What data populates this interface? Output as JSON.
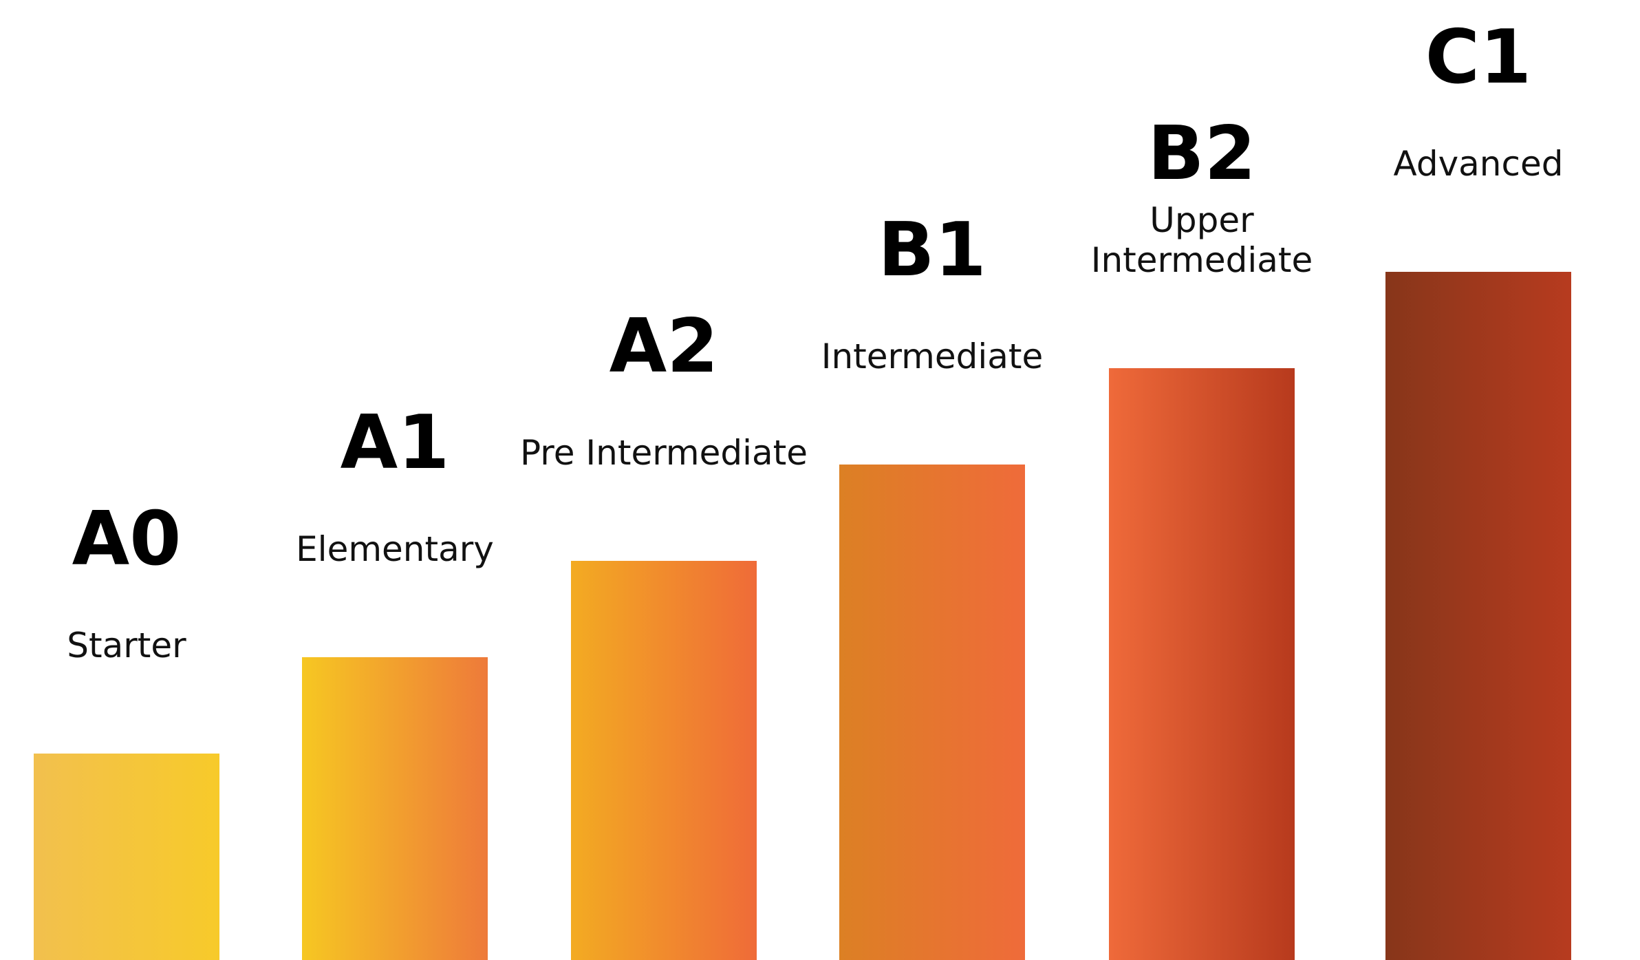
{
  "chart_data": {
    "type": "bar",
    "title": "",
    "xlabel": "",
    "ylabel": "",
    "grid": false,
    "legend": "none",
    "ylim": [
      0,
      6
    ],
    "categories": [
      "A0",
      "A1",
      "A2",
      "B1",
      "B2",
      "C1"
    ],
    "series": [
      {
        "values": [
          1,
          2,
          3,
          4,
          5,
          6
        ]
      }
    ],
    "bars": [
      {
        "code": "A0",
        "name_lines": [
          "Starter"
        ],
        "value": 1,
        "colors": [
          "#f2c04e",
          "#f7ca2a"
        ]
      },
      {
        "code": "A1",
        "name_lines": [
          "Elementary"
        ],
        "value": 2,
        "colors": [
          "#f6c722",
          "#ee7a3a"
        ]
      },
      {
        "code": "A2",
        "name_lines": [
          "Pre Intermediate"
        ],
        "value": 3,
        "colors": [
          "#f3ab22",
          "#ef6b38"
        ]
      },
      {
        "code": "B1",
        "name_lines": [
          "Intermediate"
        ],
        "value": 4,
        "colors": [
          "#dc8024",
          "#ef6b3a"
        ]
      },
      {
        "code": "B2",
        "name_lines": [
          "Upper",
          "Intermediate"
        ],
        "value": 5,
        "colors": [
          "#ef6a3a",
          "#b73a1d"
        ]
      },
      {
        "code": "C1",
        "name_lines": [
          "Advanced"
        ],
        "value": 6,
        "colors": [
          "#87361a",
          "#b73b1f"
        ]
      }
    ]
  }
}
